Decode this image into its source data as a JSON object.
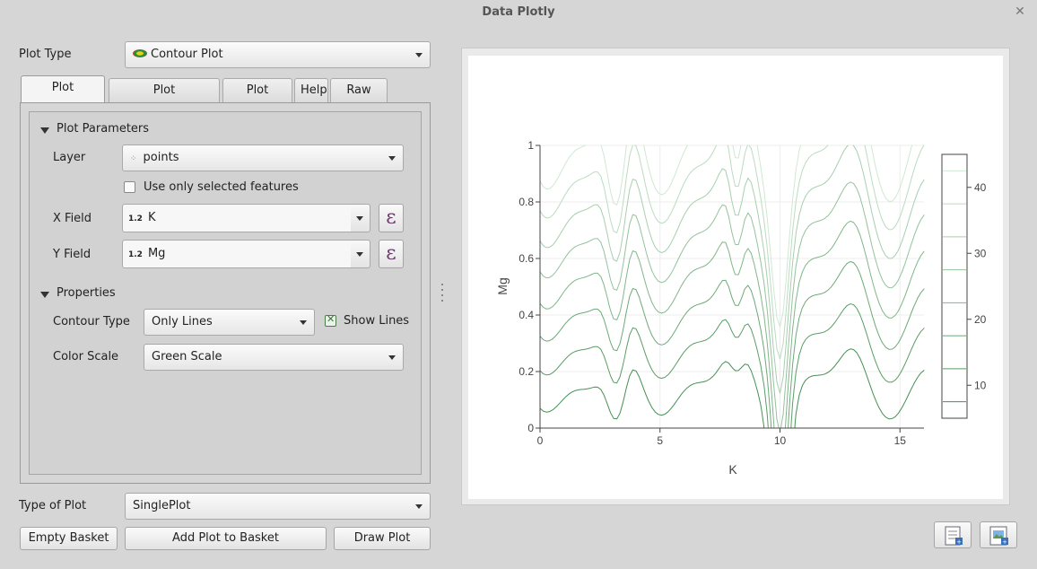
{
  "window": {
    "title": "Data Plotly"
  },
  "plot_type": {
    "label": "Plot Type",
    "value": "Contour Plot"
  },
  "tabs": [
    {
      "label": "Plot Properties",
      "active": true
    },
    {
      "label": "Plot Customizations",
      "active": false
    },
    {
      "label": "Plot Basket",
      "active": false
    },
    {
      "label": "Help",
      "active": false
    },
    {
      "label": "Raw Plot",
      "active": false
    }
  ],
  "plot_parameters": {
    "header": "Plot Parameters",
    "layer_label": "Layer",
    "layer_value": "points",
    "use_selected_label": "Use only selected features",
    "use_selected_checked": false,
    "x_field_label": "X Field",
    "x_field_type": "1.2",
    "x_field_value": "K",
    "y_field_label": "Y Field",
    "y_field_type": "1.2",
    "y_field_value": "Mg",
    "expression_glyph": "ε"
  },
  "properties": {
    "header": "Properties",
    "contour_type_label": "Contour Type",
    "contour_type_value": "Only Lines",
    "show_lines_label": "Show Lines",
    "show_lines_checked": true,
    "color_scale_label": "Color Scale",
    "color_scale_value": "Green Scale"
  },
  "type_of_plot": {
    "label": "Type of Plot",
    "value": "SinglePlot"
  },
  "buttons": {
    "empty_basket": "Empty Basket",
    "add_plot": "Add Plot to Basket",
    "draw_plot": "Draw Plot"
  },
  "colors": {
    "line_light": "#d9eedb",
    "line_mid": "#8fce9a",
    "line_dark": "#3a8a4a"
  },
  "chart_data": {
    "type": "contour",
    "xlabel": "K",
    "ylabel": "Mg",
    "xlim": [
      0,
      16
    ],
    "ylim": [
      0,
      1
    ],
    "xticks": [
      0,
      5,
      10,
      15
    ],
    "yticks": [
      0,
      0.2,
      0.4,
      0.6,
      0.8,
      1
    ],
    "colorbar_ticks": [
      10,
      20,
      30,
      40
    ],
    "colorbar_range": [
      5,
      45
    ],
    "contour_levels": [
      7.5,
      12.5,
      17.5,
      22.5,
      27.5,
      32.5,
      37.5,
      42.5
    ],
    "grid": true
  }
}
